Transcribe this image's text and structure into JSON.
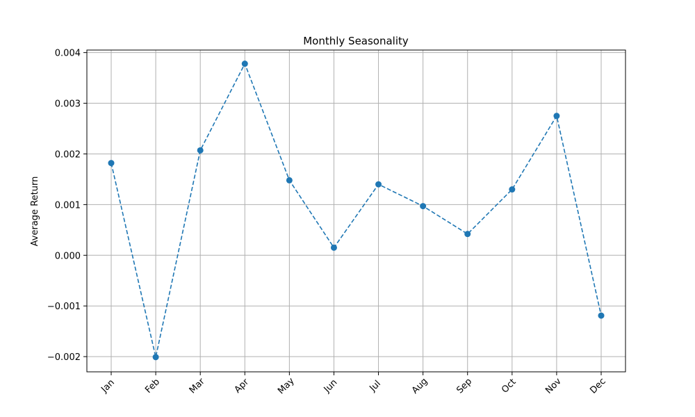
{
  "chart_data": {
    "type": "line",
    "title": "Monthly Seasonality",
    "xlabel": "",
    "ylabel": "Average Return",
    "categories": [
      "Jan",
      "Feb",
      "Mar",
      "Apr",
      "May",
      "Jun",
      "Jul",
      "Aug",
      "Sep",
      "Oct",
      "Nov",
      "Dec"
    ],
    "values": [
      0.00182,
      -0.00201,
      0.00207,
      0.00378,
      0.00148,
      0.00015,
      0.0014,
      0.00097,
      0.00042,
      0.0013,
      0.00275,
      -0.00119
    ],
    "ylim": [
      -0.0023,
      0.00405
    ],
    "yticks": [
      -0.002,
      -0.001,
      0.0,
      0.001,
      0.002,
      0.003,
      0.004
    ],
    "ytick_labels": [
      "−0.002",
      "−0.001",
      "0.000",
      "0.001",
      "0.002",
      "0.003",
      "0.004"
    ],
    "grid": true,
    "series_color": "#1f77b4",
    "line_style": "dashed",
    "marker": "circle",
    "xtick_rotation": "45deg"
  }
}
